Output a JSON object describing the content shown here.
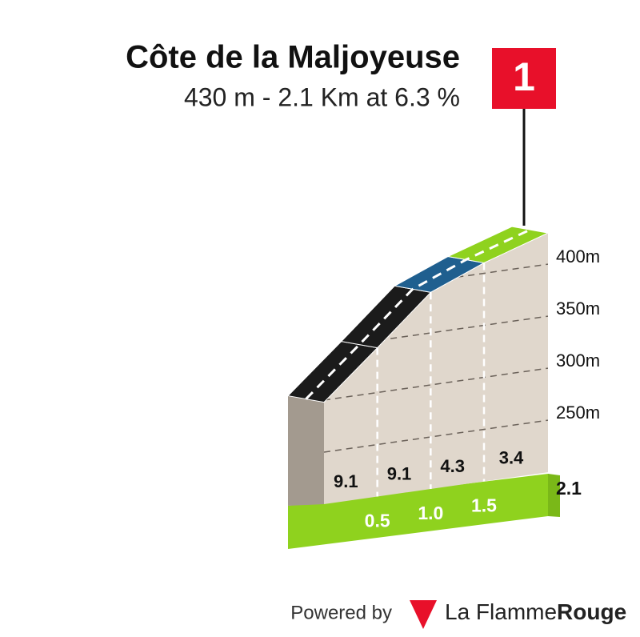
{
  "chart_data": {
    "type": "climb-profile",
    "title": "Côte de la Maljoyeuse",
    "subtitle": "430 m - 2.1 Km at 6.3 %",
    "flag": "1",
    "x": [
      0,
      0.5,
      1,
      1.5,
      2.1
    ],
    "elevation": [
      298,
      343,
      389,
      410,
      430
    ],
    "gradients": [
      9.1,
      9.1,
      4.3,
      3.4
    ],
    "segment_colors": [
      "#1b1b1b",
      "#1b1b1b",
      "#1f5f8f",
      "#8fd21e"
    ],
    "xlim": [
      0,
      2.1
    ],
    "xticks": [
      0.5,
      {
        "value": 1,
        "label": "1.0"
      },
      1.5,
      2.1
    ],
    "ylim": [
      200,
      440
    ],
    "yticks": [
      {
        "value": 250,
        "label": "250m"
      },
      {
        "value": 300,
        "label": "300m"
      },
      {
        "value": 350,
        "label": "350m"
      },
      {
        "value": 400,
        "label": "400m"
      }
    ],
    "grid": true,
    "footer": {
      "powered": "Powered by",
      "brand": "La Flamme",
      "brand_bold": "Rouge"
    }
  }
}
